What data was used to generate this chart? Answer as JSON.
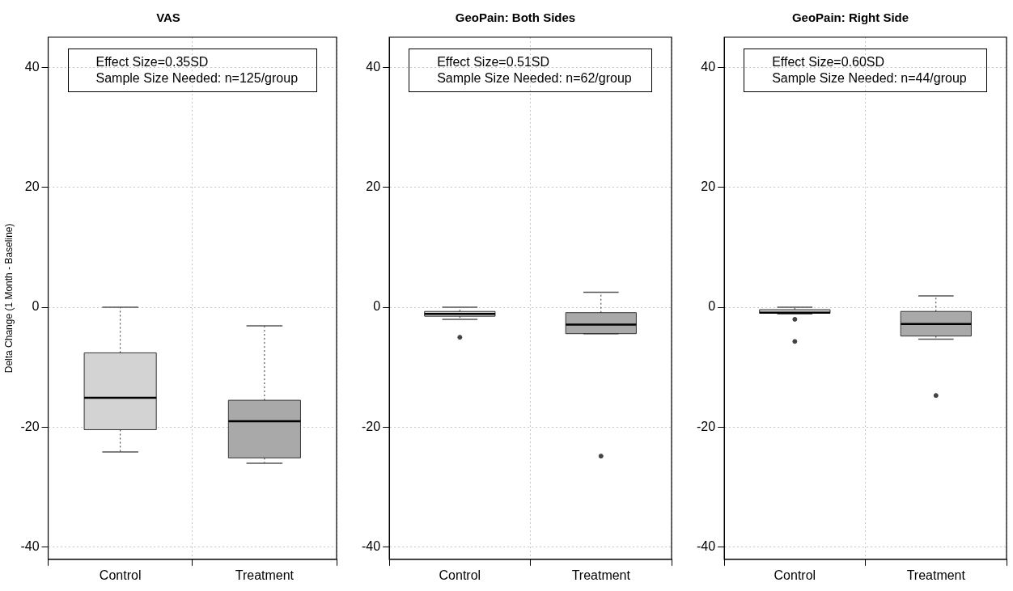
{
  "chart_data": [
    {
      "type": "box",
      "title": "VAS",
      "ylabel": "Delta Change (1 Month - Baseline)",
      "categories": [
        "Control",
        "Treatment"
      ],
      "colors": [
        "#d3d3d3",
        "#a9a9a9"
      ],
      "boxes": [
        {
          "low": -24.1,
          "q1": -20.4,
          "median": -15.1,
          "q3": -7.6,
          "high": 0
        },
        {
          "low": -26,
          "q1": -25.1,
          "median": -19,
          "q3": -15.5,
          "high": -3.1
        }
      ],
      "ylim": [
        -42,
        45
      ],
      "yticks": [
        -40,
        -20,
        0,
        20,
        40
      ],
      "grid": true,
      "legend": false,
      "annotations": [
        "Effect Size=0.35SD",
        "Sample Size Needed: n=125/group"
      ]
    },
    {
      "type": "box",
      "title": "GeoPain: Both Sides",
      "categories": [
        "Control",
        "Treatment"
      ],
      "colors": [
        "#d3d3d3",
        "#a9a9a9"
      ],
      "boxes": [
        {
          "low": -2,
          "q1": -1.5,
          "median": -1.1,
          "q3": -0.7,
          "high": 0,
          "outliers": [
            -5
          ]
        },
        {
          "low": -4.4,
          "q1": -4.4,
          "median": -2.9,
          "q3": -0.9,
          "high": 2.5,
          "outliers": [
            -24.8
          ]
        }
      ],
      "ylim": [
        -42,
        45
      ],
      "yticks": [
        -40,
        -20,
        0,
        20,
        40
      ],
      "grid": true,
      "legend": false,
      "annotations": [
        "Effect Size=0.51SD",
        "Sample Size Needed: n=62/group"
      ]
    },
    {
      "type": "box",
      "title": "GeoPain: Right Side",
      "categories": [
        "Control",
        "Treatment"
      ],
      "colors": [
        "#d3d3d3",
        "#a9a9a9"
      ],
      "boxes": [
        {
          "low": -1.1,
          "q1": -1,
          "median": -0.9,
          "q3": -0.4,
          "high": 0,
          "outliers": [
            -2,
            -5.7
          ]
        },
        {
          "low": -5.3,
          "q1": -4.8,
          "median": -2.8,
          "q3": -0.7,
          "high": 1.9,
          "outliers": [
            -14.7
          ]
        }
      ],
      "ylim": [
        -42,
        45
      ],
      "yticks": [
        -40,
        -20,
        0,
        20,
        40
      ],
      "grid": true,
      "legend": false,
      "annotations": [
        "Effect Size=0.60SD",
        "Sample Size Needed: n=44/group"
      ]
    }
  ]
}
